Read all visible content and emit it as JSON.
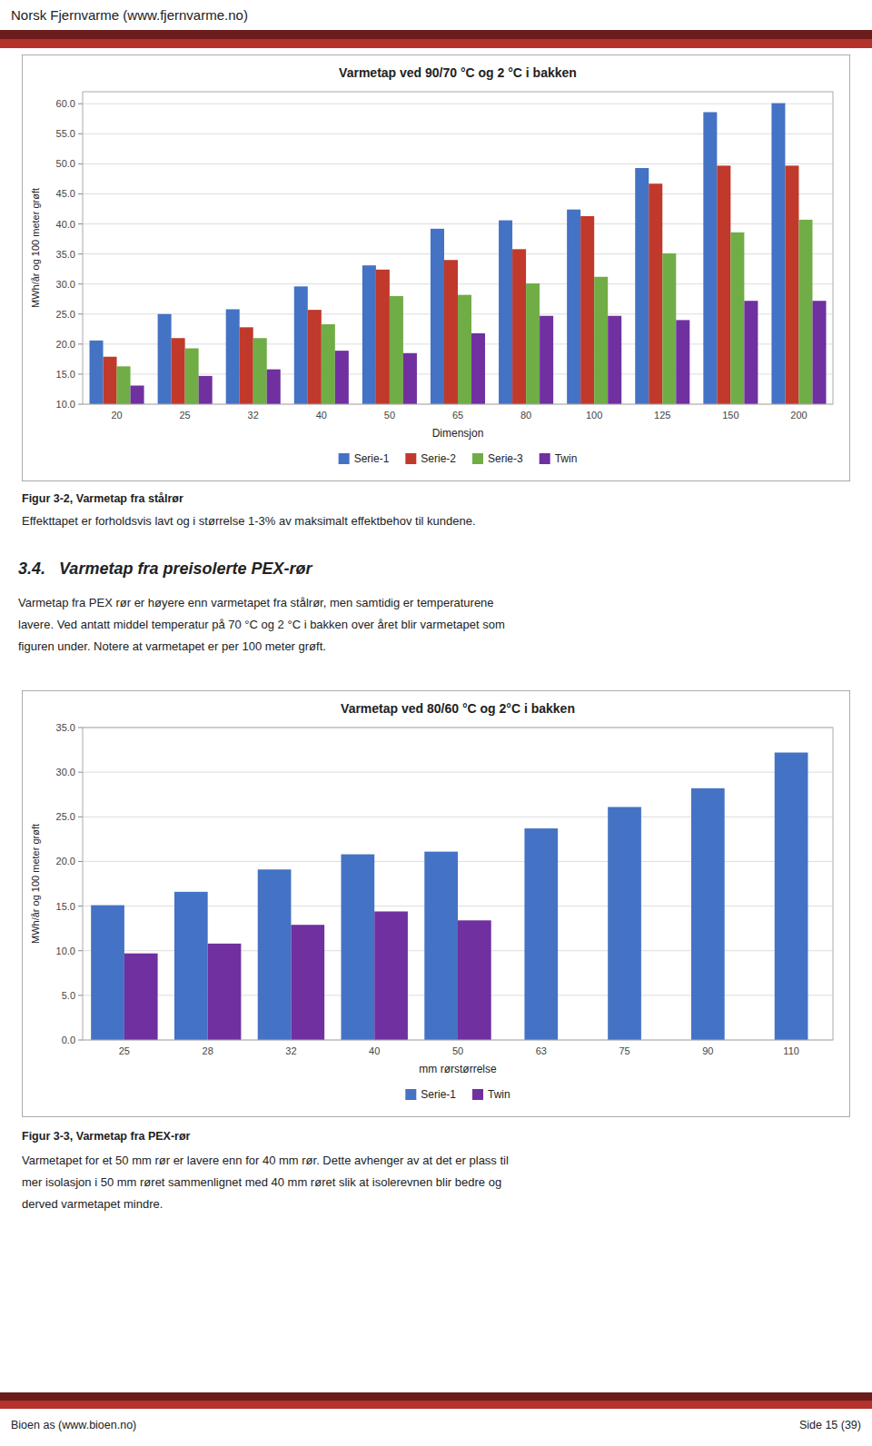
{
  "page_title": "Norsk Fjernvarme (www.fjernvarme.no)",
  "footer_left": "Bioen as (www.bioen.no)",
  "footer_right": "Side 15 (39)",
  "chart_data": [
    {
      "type": "bar",
      "title": "Varmetap ved 90/70 °C og 2 °C i bakken",
      "xlabel": "Dimensjon",
      "ylabel": "MWh/år og 100 meter grøft",
      "categories": [
        "20",
        "25",
        "32",
        "40",
        "50",
        "65",
        "80",
        "100",
        "125",
        "150",
        "200"
      ],
      "series": [
        {
          "name": "Serie-1",
          "color": "#4472C4",
          "values": [
            20.6,
            25.0,
            25.8,
            29.6,
            33.1,
            39.2,
            40.6,
            42.4,
            49.3,
            58.6,
            60.1
          ]
        },
        {
          "name": "Serie-2",
          "color": "#C0392B",
          "values": [
            17.9,
            21.0,
            22.8,
            25.7,
            32.4,
            34.0,
            35.8,
            41.3,
            46.7,
            49.7,
            49.7
          ]
        },
        {
          "name": "Serie-3",
          "color": "#70AD47",
          "values": [
            16.3,
            19.3,
            21.0,
            23.3,
            28.0,
            28.2,
            30.1,
            31.2,
            35.1,
            38.6,
            40.7
          ]
        },
        {
          "name": "Twin",
          "color": "#7030A0",
          "values": [
            13.1,
            14.7,
            15.8,
            18.9,
            18.5,
            21.8,
            24.7,
            24.7,
            24.0,
            27.2,
            27.2
          ]
        }
      ],
      "ylim": [
        10.0,
        62.0
      ],
      "yticks": [
        {
          "value": 10,
          "label": "10.0"
        },
        {
          "value": 15,
          "label": "15.0"
        },
        {
          "value": 20,
          "label": "20.0"
        },
        {
          "value": 25,
          "label": "25.0"
        },
        {
          "value": 30,
          "label": "30.0"
        },
        {
          "value": 35,
          "label": "35.0"
        },
        {
          "value": 40,
          "label": "40.0"
        },
        {
          "value": 45,
          "label": "45.0"
        },
        {
          "value": 50,
          "label": "50.0"
        },
        {
          "value": 55,
          "label": "55.0"
        },
        {
          "value": 60,
          "label": "60.0"
        }
      ],
      "grid": true,
      "legend": "bottom"
    },
    {
      "type": "bar",
      "title": "Varmetap ved 80/60 °C og 2°C i bakken",
      "xlabel": "mm rørstørrelse",
      "ylabel": "MWh/år og 100 meter grøft",
      "categories": [
        "25",
        "28",
        "32",
        "40",
        "50",
        "63",
        "75",
        "90",
        "110"
      ],
      "series": [
        {
          "name": "Serie-1",
          "color": "#4472C4",
          "values": [
            15.1,
            16.6,
            19.1,
            20.8,
            21.1,
            23.7,
            26.1,
            28.2,
            32.2
          ]
        },
        {
          "name": "Twin",
          "color": "#7030A0",
          "values": [
            9.7,
            10.8,
            12.9,
            14.4,
            13.4,
            null,
            null,
            null,
            null
          ]
        }
      ],
      "ylim": [
        0.0,
        35.0
      ],
      "yticks": [
        {
          "value": 0,
          "label": "0.0"
        },
        {
          "value": 5,
          "label": "5.0"
        },
        {
          "value": 10,
          "label": "10.0"
        },
        {
          "value": 15,
          "label": "15.0"
        },
        {
          "value": 20,
          "label": "20.0"
        },
        {
          "value": 25,
          "label": "25.0"
        },
        {
          "value": 30,
          "label": "30.0"
        },
        {
          "value": 35,
          "label": "35.0"
        }
      ],
      "grid": true,
      "legend": "bottom"
    }
  ],
  "text_block1": {
    "caption": "Figur 3-2, Varmetap fra stålrør",
    "lines": [
      "Effekttapet er forholdsvis lavt og i størrelse 1-3% av maksimalt effektbehov til kundene."
    ]
  },
  "section_header": "3.4.   Varmetap fra preisolerte PEX-rør",
  "section_text": [
    "Varmetap fra PEX rør er høyere enn varmetapet fra stålrør, men samtidig er temperaturene",
    "lavere. Ved antatt middel temperatur på 70 °C og 2 °C i bakken over året blir varmetapet som",
    "figuren under. Notere at varmetapet er per 100 meter grøft."
  ],
  "text_block2": {
    "caption": "Figur 3-3, Varmetap fra PEX-rør",
    "lines": [
      "Varmetapet for et 50 mm rør er lavere enn for 40 mm rør. Dette avhenger av at det er plass til",
      "mer isolasjon i 50 mm røret sammenlignet med 40 mm røret slik at isolerevnen blir bedre og",
      "derved varmetapet mindre."
    ]
  }
}
